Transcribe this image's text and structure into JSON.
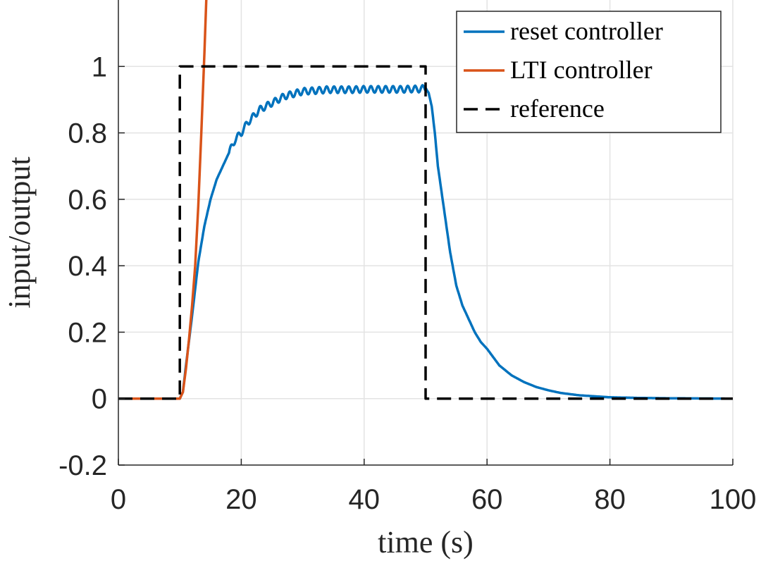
{
  "chart_data": {
    "type": "line",
    "title": "",
    "xlabel": "time (s)",
    "ylabel": "input/output",
    "xlim": [
      0,
      100
    ],
    "ylim": [
      -0.2,
      1.2
    ],
    "xticks": [
      0,
      20,
      40,
      60,
      80,
      100
    ],
    "xtick_labels": [
      "0",
      "20",
      "40",
      "60",
      "80",
      "100"
    ],
    "yticks": [
      -0.2,
      0,
      0.2,
      0.4,
      0.6,
      0.8,
      1
    ],
    "ytick_labels": [
      "-0.2",
      "0",
      "0.2",
      "0.4",
      "0.6",
      "0.8",
      "1"
    ],
    "grid": true,
    "legend_position": "top-right",
    "series": [
      {
        "name": "reset controller",
        "color": "#0072bd",
        "style": "solid",
        "x": [
          0,
          10,
          10.5,
          11,
          12,
          13,
          14,
          15,
          16,
          17,
          18,
          19,
          20,
          21,
          22,
          23,
          24,
          25,
          26,
          27,
          28,
          29,
          30,
          32,
          34,
          36,
          38,
          40,
          42,
          44,
          46,
          48,
          49,
          50,
          50.5,
          51,
          51.5,
          52,
          53,
          54,
          55,
          56,
          57,
          58,
          59,
          60,
          62,
          64,
          66,
          68,
          70,
          72,
          75,
          80,
          85,
          90,
          100
        ],
        "y": [
          0,
          0,
          0.02,
          0.1,
          0.25,
          0.41,
          0.52,
          0.6,
          0.66,
          0.7,
          0.74,
          0.78,
          0.8,
          0.83,
          0.85,
          0.87,
          0.88,
          0.89,
          0.9,
          0.91,
          0.915,
          0.92,
          0.925,
          0.927,
          0.93,
          0.93,
          0.93,
          0.931,
          0.931,
          0.931,
          0.931,
          0.932,
          0.932,
          0.935,
          0.92,
          0.88,
          0.8,
          0.7,
          0.57,
          0.44,
          0.34,
          0.28,
          0.24,
          0.2,
          0.17,
          0.15,
          0.1,
          0.07,
          0.05,
          0.035,
          0.025,
          0.017,
          0.01,
          0.004,
          0.002,
          0.001,
          0
        ],
        "ripple_range": [
          18,
          50
        ],
        "ripple_amplitude": 0.01,
        "ripple_period": 1.2
      },
      {
        "name": "LTI controller",
        "color": "#d95319",
        "style": "solid",
        "x": [
          0,
          10,
          10.5,
          11,
          11.5,
          12,
          12.5,
          13,
          13.5,
          14,
          14.5
        ],
        "y": [
          0,
          0,
          0.02,
          0.09,
          0.18,
          0.28,
          0.4,
          0.58,
          0.8,
          1.04,
          1.3
        ]
      },
      {
        "name": "reference",
        "color": "#000000",
        "style": "dashed",
        "x": [
          0,
          10,
          10,
          50,
          50,
          100
        ],
        "y": [
          0,
          0,
          1,
          1,
          0,
          0
        ]
      }
    ]
  }
}
